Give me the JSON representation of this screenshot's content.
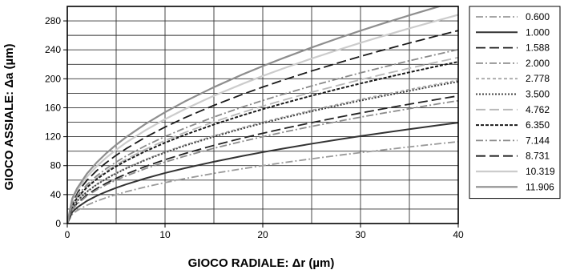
{
  "chart_data": {
    "type": "line",
    "xlabel": "GIOCO RADIALE:  Δr (µm)",
    "ylabel": "GIOCO ASSIALE:  Δa (µm)",
    "xlim": [
      0,
      40
    ],
    "ylim": [
      0,
      300
    ],
    "xticks": [
      0,
      10,
      20,
      30,
      40
    ],
    "yticks": [
      0,
      40,
      80,
      120,
      160,
      200,
      240,
      280
    ],
    "x_gridlines": [
      0,
      5,
      10,
      15,
      20,
      25,
      30,
      35,
      40
    ],
    "y_gridlines": [
      0,
      20,
      40,
      60,
      80,
      100,
      120,
      140,
      160,
      180,
      200,
      220,
      240,
      260,
      280,
      300
    ],
    "grid": true,
    "legend_position": "right",
    "x": [
      0,
      0.5,
      1,
      2,
      3,
      4,
      5,
      6,
      8,
      10,
      12,
      15,
      18,
      20,
      22,
      25,
      28,
      30,
      32,
      35,
      38,
      40
    ],
    "series": [
      {
        "name": "0.600",
        "color": "#9a9a9a",
        "width": 1.8,
        "dash": "9,3,2,3",
        "values": [
          0,
          12.7,
          17.9,
          25.3,
          31.0,
          35.8,
          40.0,
          43.8,
          50.6,
          56.6,
          62.0,
          69.3,
          75.9,
          80.0,
          83.9,
          89.4,
          94.7,
          98.0,
          101.2,
          105.9,
          110.3,
          113.1
        ]
      },
      {
        "name": "1.000",
        "color": "#333333",
        "width": 2.0,
        "dash": "",
        "values": [
          0,
          15.6,
          22.1,
          31.2,
          38.2,
          44.1,
          49.3,
          54.0,
          62.4,
          69.8,
          76.4,
          85.4,
          93.5,
          98.6,
          103.4,
          110.2,
          116.7,
          120.8,
          124.7,
          130.4,
          135.9,
          139.4
        ]
      },
      {
        "name": "1.588",
        "color": "#222222",
        "width": 1.8,
        "dash": "12,5",
        "values": [
          0,
          19.7,
          27.9,
          39.4,
          48.3,
          55.8,
          62.4,
          68.3,
          78.9,
          88.2,
          96.6,
          108.0,
          118.3,
          124.7,
          130.8,
          139.4,
          147.5,
          152.7,
          157.7,
          164.9,
          171.9,
          176.4
        ]
      },
      {
        "name": "2.000",
        "color": "#8c8c8c",
        "width": 1.8,
        "dash": "9,3,2,3",
        "values": [
          0,
          19.0,
          26.8,
          38.0,
          46.5,
          53.7,
          60.0,
          65.7,
          75.9,
          84.9,
          93.0,
          104.0,
          113.8,
          120.0,
          125.9,
          134.2,
          142.0,
          147.0,
          151.8,
          158.7,
          165.5,
          169.7
        ]
      },
      {
        "name": "2.778",
        "color": "#a8a8a8",
        "width": 1.8,
        "dash": "4,3",
        "values": [
          0,
          22.1,
          31.3,
          44.3,
          54.2,
          62.6,
          70.0,
          76.7,
          88.5,
          99.0,
          108.4,
          121.2,
          132.8,
          140.0,
          146.8,
          156.5,
          165.6,
          171.5,
          177.1,
          185.2,
          193.0,
          198.0
        ]
      },
      {
        "name": "3.500",
        "color": "#444444",
        "width": 2.0,
        "dash": "2,2",
        "values": [
          0,
          21.9,
          31.0,
          43.8,
          53.7,
          62.0,
          69.3,
          75.9,
          87.7,
          98.0,
          107.4,
          120.0,
          131.5,
          138.6,
          145.4,
          155.0,
          164.0,
          169.8,
          175.3,
          183.3,
          191.1,
          196.0
        ]
      },
      {
        "name": "4.762",
        "color": "#b8b8b8",
        "width": 1.8,
        "dash": "12,5",
        "values": [
          0,
          25.6,
          36.3,
          51.3,
          62.8,
          72.5,
          81.1,
          88.8,
          102.6,
          114.7,
          125.6,
          140.5,
          153.9,
          162.2,
          170.1,
          181.4,
          191.9,
          198.7,
          205.2,
          214.6,
          223.6,
          229.4
        ]
      },
      {
        "name": "6.350",
        "color": "#1a1a1a",
        "width": 2.0,
        "dash": "4,2",
        "values": [
          0,
          25.0,
          35.3,
          49.9,
          61.2,
          70.6,
          79.0,
          86.5,
          99.9,
          111.7,
          122.4,
          136.8,
          149.9,
          158.0,
          165.7,
          176.6,
          186.9,
          193.5,
          199.8,
          209.0,
          217.8,
          223.5
        ]
      },
      {
        "name": "7.144",
        "color": "#8a8a8a",
        "width": 1.8,
        "dash": "9,3,2,3",
        "values": [
          0,
          26.9,
          38.0,
          53.7,
          65.8,
          76.0,
          85.0,
          93.1,
          107.5,
          120.2,
          131.7,
          147.2,
          161.3,
          170.0,
          178.3,
          190.1,
          201.1,
          208.2,
          215.0,
          224.9,
          234.3,
          240.4
        ]
      },
      {
        "name": "8.731",
        "color": "#1a1a1a",
        "width": 1.8,
        "dash": "12,5",
        "values": [
          0,
          29.8,
          42.2,
          59.6,
          73.0,
          84.3,
          94.3,
          103.3,
          119.2,
          133.3,
          146.1,
          163.3,
          178.9,
          188.6,
          197.8,
          210.8,
          223.1,
          230.9,
          238.5,
          249.4,
          259.9,
          266.6
        ]
      },
      {
        "name": "10.319",
        "color": "#cccccc",
        "width": 2.2,
        "dash": "",
        "values": [
          0,
          32.2,
          45.6,
          64.5,
          79.0,
          91.2,
          101.9,
          111.7,
          128.9,
          144.2,
          157.9,
          176.6,
          193.4,
          203.9,
          213.8,
          228.0,
          241.2,
          249.7,
          257.9,
          269.7,
          281.0,
          288.4
        ]
      },
      {
        "name": "11.906",
        "color": "#8e8e8e",
        "width": 2.2,
        "dash": "",
        "values": [
          0,
          34.4,
          48.6,
          68.8,
          84.2,
          97.3,
          108.8,
          119.2,
          137.6,
          153.8,
          168.5,
          188.4,
          206.4,
          217.5,
          228.1,
          243.2,
          257.4,
          266.4,
          275.2,
          287.7,
          299.8,
          307.7
        ]
      }
    ]
  }
}
